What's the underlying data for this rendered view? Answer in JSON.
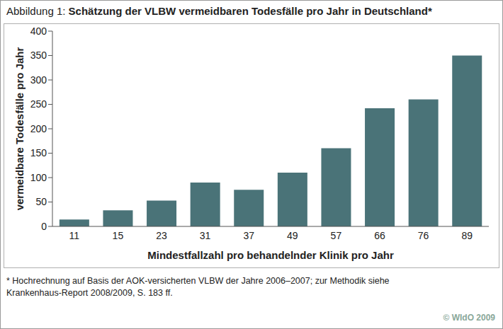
{
  "chart_data": {
    "type": "bar",
    "title": "Abbildung 1: Schätzung der VLBW vermeidbaren Todesfälle pro Jahr in Deutschland*",
    "x_label": "Mindestfallzahl pro behandelnder Klinik pro Jahr",
    "y_label": "vermeidbare Todesfälle pro Jahr",
    "categories": [
      "11",
      "15",
      "23",
      "31",
      "37",
      "49",
      "57",
      "66",
      "76",
      "89"
    ],
    "values": [
      14,
      33,
      53,
      90,
      75,
      110,
      160,
      242,
      260,
      350
    ],
    "color": "#4a7378",
    "ylim": [
      0,
      400
    ],
    "yticks": [
      0,
      50,
      100,
      150,
      200,
      250,
      300,
      350,
      400
    ],
    "grid": false,
    "annotations": [
      "* Hochrechnung auf Basis der AOK-versicherten VLBW der Jahre 2006–2007; zur Methodik siehe Krankenhaus-Report 2008/2009, S. 183 ff.",
      "© WIdO 2009"
    ]
  }
}
